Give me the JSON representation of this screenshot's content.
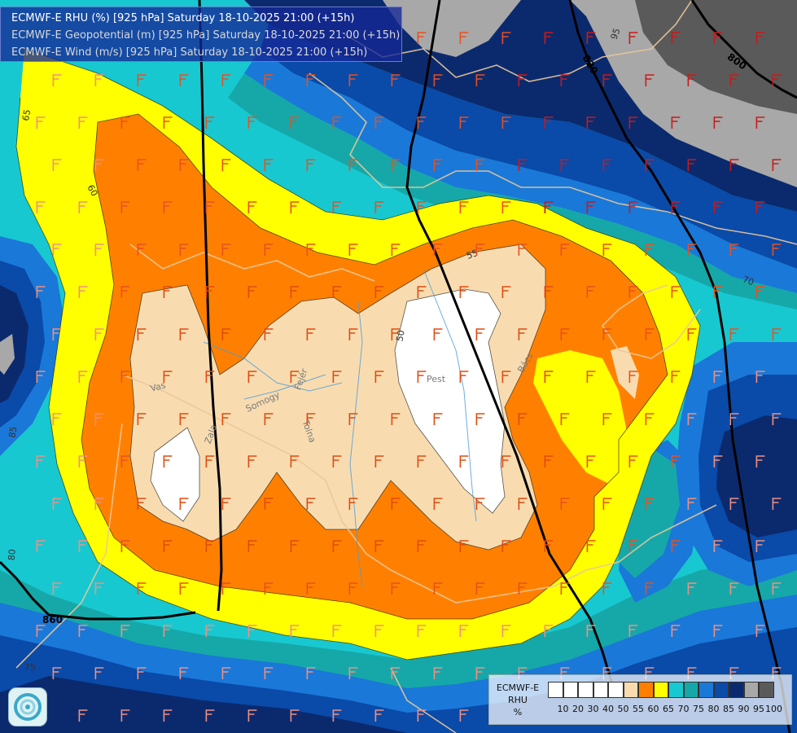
{
  "header": {
    "line1": "ECMWF-E RHU (%) [925 hPa] Saturday 18-10-2025 21:00 (+15h)",
    "line2": "ECMWF-E Geopotential (m) [925 hPa] Saturday 18-10-2025 21:00 (+15h)",
    "line3": "ECMWF-E Wind (m/s) [925 hPa] Saturday 18-10-2025 21:00 (+15h)"
  },
  "map": {
    "contour_labels": [
      "820",
      "800",
      "860",
      "50",
      "55",
      "60",
      "65",
      "70",
      "75",
      "80",
      "85",
      "95"
    ],
    "place_labels": [
      "Pest",
      "Vas",
      "Somogy",
      "Zala",
      "Fejér",
      "Tolna",
      "Bács"
    ],
    "colors": {
      "rhu_100": "#5a5a5a",
      "rhu_95": "#a8a8a8",
      "rhu_90": "#0b2a6e",
      "rhu_85": "#0a4aa8",
      "rhu_80": "#1a78d8",
      "rhu_75": "#16a8a8",
      "rhu_70": "#18c8d0",
      "rhu_65": "#ffff00",
      "rhu_60": "#ff8000",
      "rhu_55": "#f8dcb0",
      "rhu_50": "#ffffff"
    }
  },
  "legend": {
    "title_line1": "ECMWF-E",
    "title_line2": "RHU",
    "title_line3": "%",
    "ticks": [
      "10",
      "20",
      "30",
      "40",
      "50",
      "55",
      "60",
      "65",
      "70",
      "75",
      "80",
      "85",
      "90",
      "95",
      "100"
    ],
    "swatch_colors": [
      "#ffffff",
      "#ffffff",
      "#ffffff",
      "#ffffff",
      "#ffffff",
      "#f8dcb0",
      "#ff8000",
      "#ffff00",
      "#18c8d0",
      "#16a8a8",
      "#1a78d8",
      "#0a4aa8",
      "#0b2a6e",
      "#a8a8a8",
      "#5a5a5a"
    ]
  },
  "logo_icon": "ecmwf-swirl-icon"
}
